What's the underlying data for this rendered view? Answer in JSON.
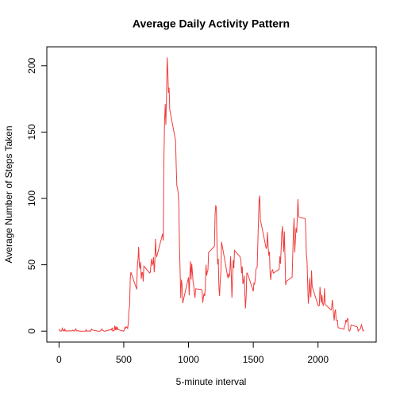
{
  "chart_data": {
    "type": "line",
    "title": "Average Daily Activity Pattern",
    "x_label": "5-minute interval",
    "y_label": "Average Number of Steps Taken",
    "color": "#f03b3b",
    "xlim": [
      -94.2,
      2449.2
    ],
    "xticks": [
      0,
      500,
      1000,
      1500,
      2000
    ],
    "ylim": [
      -8.24,
      214.24
    ],
    "yticks": [
      0,
      50,
      100,
      150,
      200
    ],
    "x": [
      0,
      5,
      10,
      15,
      20,
      25,
      30,
      35,
      40,
      45,
      50,
      55,
      100,
      105,
      110,
      115,
      120,
      125,
      130,
      135,
      140,
      145,
      150,
      155,
      200,
      205,
      210,
      215,
      220,
      225,
      230,
      235,
      240,
      245,
      250,
      255,
      300,
      305,
      310,
      315,
      320,
      325,
      330,
      335,
      340,
      345,
      350,
      355,
      400,
      405,
      410,
      415,
      420,
      425,
      430,
      435,
      440,
      445,
      450,
      455,
      500,
      505,
      510,
      515,
      520,
      525,
      530,
      535,
      540,
      545,
      550,
      555,
      600,
      605,
      610,
      615,
      620,
      625,
      630,
      635,
      640,
      645,
      650,
      655,
      700,
      705,
      710,
      715,
      720,
      725,
      730,
      735,
      740,
      745,
      750,
      755,
      800,
      805,
      810,
      815,
      820,
      825,
      830,
      835,
      840,
      845,
      850,
      855,
      900,
      905,
      910,
      915,
      920,
      925,
      930,
      935,
      940,
      945,
      950,
      955,
      1000,
      1005,
      1010,
      1015,
      1020,
      1025,
      1030,
      1035,
      1040,
      1045,
      1050,
      1055,
      1100,
      1105,
      1110,
      1115,
      1120,
      1125,
      1130,
      1135,
      1140,
      1145,
      1150,
      1155,
      1200,
      1205,
      1210,
      1215,
      1220,
      1225,
      1230,
      1235,
      1240,
      1245,
      1250,
      1255,
      1300,
      1305,
      1310,
      1315,
      1320,
      1325,
      1330,
      1335,
      1340,
      1345,
      1350,
      1355,
      1400,
      1405,
      1410,
      1415,
      1420,
      1425,
      1430,
      1435,
      1440,
      1445,
      1450,
      1455,
      1500,
      1505,
      1510,
      1515,
      1520,
      1525,
      1530,
      1535,
      1540,
      1545,
      1550,
      1555,
      1600,
      1605,
      1610,
      1615,
      1620,
      1625,
      1630,
      1635,
      1640,
      1645,
      1650,
      1655,
      1700,
      1705,
      1710,
      1715,
      1720,
      1725,
      1730,
      1735,
      1740,
      1745,
      1750,
      1755,
      1800,
      1805,
      1810,
      1815,
      1820,
      1825,
      1830,
      1835,
      1840,
      1845,
      1850,
      1855,
      1900,
      1905,
      1910,
      1915,
      1920,
      1925,
      1930,
      1935,
      1940,
      1945,
      1950,
      1955,
      2000,
      2005,
      2010,
      2015,
      2020,
      2025,
      2030,
      2035,
      2040,
      2045,
      2050,
      2055,
      2100,
      2105,
      2110,
      2115,
      2120,
      2125,
      2130,
      2135,
      2140,
      2145,
      2150,
      2155,
      2200,
      2205,
      2210,
      2215,
      2220,
      2225,
      2230,
      2235,
      2240,
      2245,
      2250,
      2255,
      2300,
      2305,
      2310,
      2315,
      2320,
      2325,
      2330,
      2335,
      2340,
      2345,
      2350,
      2355
    ],
    "values": [
      1.7,
      0.3,
      0.1,
      0.2,
      0.1,
      2.1,
      0.5,
      0.9,
      0,
      1.5,
      0.3,
      0.1,
      0.3,
      0.7,
      0.2,
      0.3,
      0,
      1.1,
      1.8,
      0.2,
      0.2,
      0.4,
      0.3,
      0,
      0,
      0,
      1.1,
      0,
      0,
      0.1,
      0,
      0.2,
      0,
      0,
      1.5,
      0.9,
      0,
      0,
      0,
      0,
      0.2,
      0.6,
      1.6,
      0.6,
      0.5,
      0.1,
      0,
      0,
      1.2,
      0.9,
      2.6,
      0,
      0.3,
      0.4,
      4.1,
      0.7,
      3.5,
      0.8,
      3.1,
      1.1,
      0,
      1.6,
      3,
      2.2,
      3.3,
      3,
      2.1,
      6.1,
      16,
      18.3,
      39.5,
      44.5,
      31.5,
      49.3,
      53.8,
      63.5,
      50,
      47.1,
      52.2,
      39.3,
      44,
      44.2,
      37.4,
      49,
      43.8,
      44.4,
      50.5,
      54.5,
      49.9,
      50.9,
      55.7,
      44.3,
      52.3,
      69.5,
      57.8,
      56.2,
      73.4,
      68.2,
      129.4,
      157.5,
      171.2,
      155.4,
      177.3,
      206.2,
      195.9,
      179.6,
      183.4,
      167,
      143.5,
      124,
      109.1,
      108.1,
      103.7,
      95.97,
      66.2,
      45.2,
      24.8,
      38.8,
      35,
      21.1,
      40.6,
      27,
      42.4,
      52.7,
      38.9,
      50.8,
      44.3,
      37.4,
      34.7,
      28.3,
      25.1,
      31.9,
      31.4,
      29.7,
      21.3,
      25.5,
      28.4,
      26.5,
      33.4,
      50,
      42,
      44.6,
      46,
      59.3,
      63.9,
      87.7,
      94.8,
      92.8,
      63.4,
      50.2,
      54.5,
      32.4,
      26.5,
      37.7,
      45.1,
      67.3,
      42.3,
      39.9,
      43.3,
      40.98,
      46.2,
      56.4,
      42.8,
      25.1,
      39.97,
      53.5,
      47.3,
      60.8,
      55.8,
      51.96,
      43.6,
      48.7,
      35.5,
      37.5,
      41.8,
      27.5,
      17.1,
      26.1,
      43.6,
      43.8,
      30,
      36.1,
      35.5,
      38.8,
      45.96,
      47.8,
      48.1,
      65.3,
      82.9,
      98.7,
      102.1,
      83.96,
      62.1,
      64.1,
      74.5,
      63.2,
      56.9,
      59.8,
      43.9,
      38.6,
      44.7,
      45.5,
      46.2,
      43.7,
      46.6,
      56.3,
      50.7,
      61.2,
      73.4,
      79.1,
      68.9,
      59.7,
      75.1,
      56.5,
      34.8,
      37.5,
      40.7,
      58,
      74.7,
      85.3,
      59.3,
      67.8,
      77.7,
      74.2,
      85.3,
      99.5,
      86.6,
      85.6,
      84.9,
      77.8,
      58,
      53.4,
      36.3,
      20.7,
      27.4,
      40,
      30.2,
      25.5,
      45.7,
      33.5,
      19.6,
      19,
      19.3,
      33.3,
      26.8,
      21.2,
      27.3,
      21.3,
      19.5,
      21.3,
      32.3,
      20.2,
      15.9,
      17.2,
      23.5,
      19.2,
      12.5,
      8,
      14.7,
      16.3,
      8.7,
      7.8,
      8.1,
      2.6,
      1.5,
      3.7,
      4.8,
      8.5,
      7.1,
      8.7,
      9.8,
      2.2,
      0.3,
      0.1,
      1.6,
      4.6,
      3.3,
      2.8,
      0,
      0.8,
      0.96,
      1.6,
      2.6,
      4.7,
      3.3,
      0.6,
      0.2,
      1.1
    ]
  }
}
